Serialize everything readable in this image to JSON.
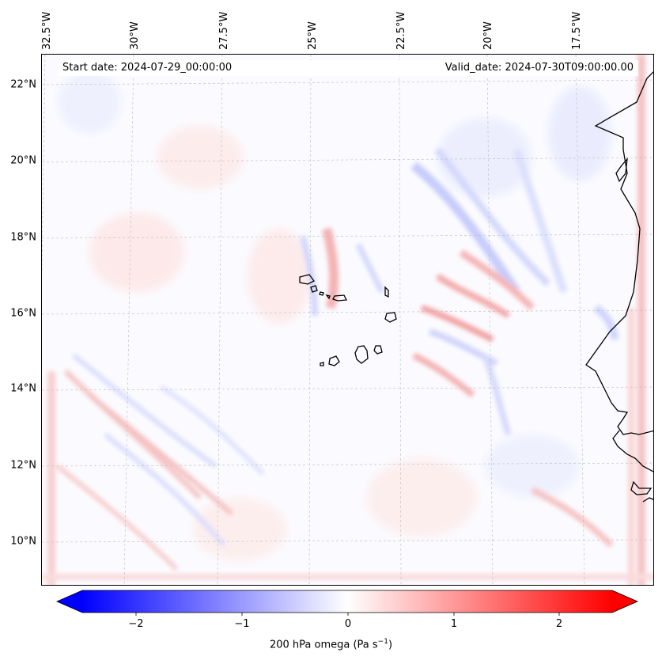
{
  "map": {
    "lat_labels": [
      "22°N",
      "20°N",
      "18°N",
      "16°N",
      "14°N",
      "12°N",
      "10°N"
    ],
    "lon_labels": [
      "32.5°W",
      "30°W",
      "27.5°W",
      "25°W",
      "22.5°W",
      "20°W",
      "17.5°W"
    ],
    "start_date": "Start date: 2024-07-29_00:00:00",
    "valid_date": "Valid_date: 2024-07-30T09:00:00.00"
  },
  "colorbar": {
    "ticks": [
      "−2",
      "−1",
      "0",
      "1",
      "2"
    ],
    "label": "200 hPa omega (Pa s",
    "label_sup": "−1",
    "label_end": ")",
    "range": [
      -2.75,
      2.75
    ],
    "min_color": "#0000ff",
    "mid_color": "#ffffff",
    "max_color": "#ff0000"
  }
}
